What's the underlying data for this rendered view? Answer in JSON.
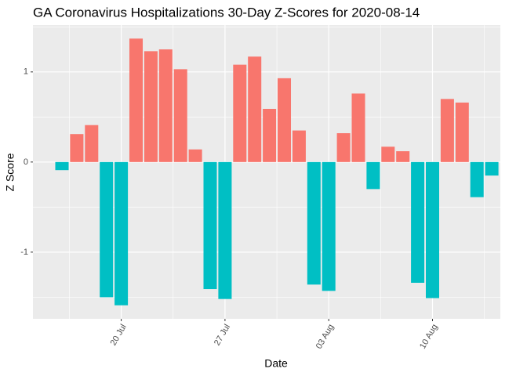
{
  "chart_data": {
    "type": "bar",
    "title": "GA Coronavirus Hospitalizations 30-Day Z-Scores for 2020-08-14",
    "x_label": "Date",
    "y_label": "Z Score",
    "categories": [
      "16 Jul",
      "17 Jul",
      "18 Jul",
      "19 Jul",
      "20 Jul",
      "21 Jul",
      "22 Jul",
      "23 Jul",
      "24 Jul",
      "25 Jul",
      "26 Jul",
      "27 Jul",
      "28 Jul",
      "29 Jul",
      "30 Jul",
      "31 Jul",
      "01 Aug",
      "02 Aug",
      "03 Aug",
      "04 Aug",
      "05 Aug",
      "06 Aug",
      "07 Aug",
      "08 Aug",
      "09 Aug",
      "10 Aug",
      "11 Aug",
      "12 Aug",
      "13 Aug",
      "14 Aug"
    ],
    "values": [
      -0.09,
      0.31,
      0.41,
      -1.5,
      -1.59,
      1.37,
      1.23,
      1.25,
      1.03,
      0.14,
      -1.41,
      -1.52,
      1.08,
      1.17,
      0.59,
      0.93,
      0.35,
      -1.36,
      -1.43,
      0.32,
      0.76,
      -0.3,
      0.17,
      0.12,
      -1.34,
      -1.51,
      0.7,
      0.66,
      -0.39,
      -0.15
    ],
    "positive_color": "#F8766D",
    "negative_color": "#00BFC4",
    "xticks": [
      4,
      11,
      18,
      25
    ],
    "ylim": [
      -1.74,
      1.52
    ],
    "yticks": [
      -1,
      0,
      1
    ],
    "y_minor_grid": [
      -1.5,
      -0.5,
      0.5,
      1.5
    ],
    "grid": true
  }
}
